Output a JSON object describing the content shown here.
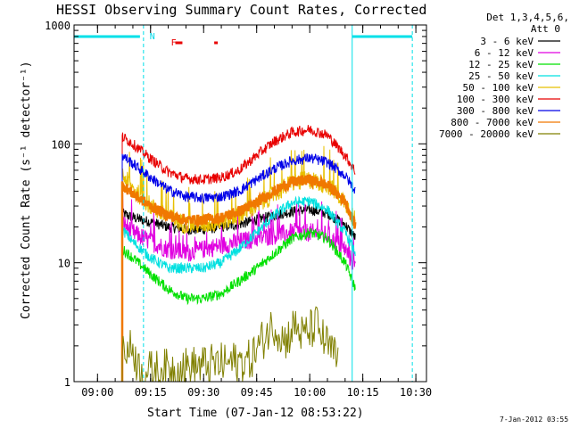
{
  "chart_data": {
    "type": "line",
    "title": "HESSI Observing Summary Count Rates, Corrected",
    "xlabel": "Start Time (07-Jan-12 08:53:22)",
    "ylabel": "Corrected Count Rate (s⁻¹ detector⁻¹)",
    "yscale": "log",
    "ylim": [
      1,
      1000
    ],
    "xlim": [
      "08:53:22",
      "10:33:00"
    ],
    "yticks": [
      "1",
      "10",
      "100",
      "1000"
    ],
    "xticks": [
      "09:00",
      "09:15",
      "09:30",
      "09:45",
      "10:00",
      "10:15",
      "10:30"
    ],
    "grid": false,
    "legend_position": "right-outside",
    "legend_header": [
      "Det 1,3,4,5,6,",
      "Att 0"
    ],
    "timestamp": "7-Jan-2012 03:55",
    "annotations": [
      {
        "text": "N",
        "x": "09:14",
        "color": "#00d8e8"
      },
      {
        "text": "F",
        "x": "09:20",
        "color": "#e80000"
      }
    ],
    "orbit_bars": {
      "color": "#00e0e8",
      "night_start": "09:13",
      "day_boundaries": [
        "09:13",
        "10:12",
        "10:29"
      ],
      "bars": [
        {
          "x0": "08:53:22",
          "x1": "09:12"
        },
        {
          "x0": "10:12",
          "x1": "10:29"
        }
      ]
    },
    "flare_flags": {
      "color": "#e80000",
      "segments": [
        {
          "x0": "09:22",
          "x1": "09:24"
        },
        {
          "x0": "09:33",
          "x1": "09:34"
        }
      ]
    },
    "series": [
      {
        "name": "3 - 6 keV",
        "color": "#000000",
        "x": [
          "09:07",
          "09:10",
          "09:15",
          "09:20",
          "09:25",
          "09:30",
          "09:35",
          "09:40",
          "09:45",
          "09:50",
          "09:55",
          "10:00",
          "10:05",
          "10:10",
          "10:13"
        ],
        "y": [
          26,
          24,
          22,
          20,
          19,
          19,
          20,
          21,
          23,
          25,
          27,
          28,
          26,
          21,
          16
        ]
      },
      {
        "name": "6 - 12 keV",
        "color": "#e000e0",
        "x": [
          "09:07",
          "09:10",
          "09:15",
          "09:20",
          "09:25",
          "09:30",
          "09:35",
          "09:40",
          "09:45",
          "09:50",
          "09:55",
          "10:00",
          "10:05",
          "10:10",
          "10:13"
        ],
        "y": [
          22,
          18,
          15,
          13,
          12,
          13,
          14,
          15,
          16,
          17,
          18,
          18,
          17,
          13,
          9
        ]
      },
      {
        "name": "12 - 25 keV",
        "color": "#00e000",
        "x": [
          "09:07",
          "09:10",
          "09:15",
          "09:20",
          "09:25",
          "09:30",
          "09:35",
          "09:40",
          "09:45",
          "09:50",
          "09:55",
          "10:00",
          "10:05",
          "10:10",
          "10:13"
        ],
        "y": [
          13,
          11,
          8,
          6,
          5,
          5,
          5.5,
          7,
          9,
          12,
          16,
          18,
          16,
          10,
          6
        ]
      },
      {
        "name": "25 - 50 keV",
        "color": "#00e0e0",
        "x": [
          "09:07",
          "09:10",
          "09:15",
          "09:20",
          "09:25",
          "09:30",
          "09:35",
          "09:40",
          "09:45",
          "09:50",
          "09:55",
          "10:00",
          "10:05",
          "10:10",
          "10:13"
        ],
        "y": [
          19,
          15,
          11,
          9,
          9,
          9,
          10,
          13,
          18,
          25,
          32,
          33,
          28,
          18,
          12
        ]
      },
      {
        "name": "50 - 100 keV",
        "color": "#e8c000",
        "x": [
          "09:07",
          "09:10",
          "09:15",
          "09:20",
          "09:25",
          "09:30",
          "09:35",
          "09:40",
          "09:45",
          "09:50",
          "09:55",
          "10:00",
          "10:05",
          "10:10",
          "10:13"
        ],
        "y": [
          55,
          42,
          30,
          24,
          21,
          21,
          22,
          25,
          30,
          38,
          47,
          50,
          45,
          33,
          22
        ]
      },
      {
        "name": "100 - 300 keV",
        "color": "#e80000",
        "x": [
          "09:07",
          "09:10",
          "09:15",
          "09:20",
          "09:25",
          "09:30",
          "09:35",
          "09:40",
          "09:45",
          "09:50",
          "09:55",
          "10:00",
          "10:05",
          "10:10",
          "10:13"
        ],
        "y": [
          115,
          100,
          75,
          58,
          51,
          50,
          52,
          60,
          80,
          105,
          125,
          132,
          118,
          80,
          58
        ]
      },
      {
        "name": "300 - 800 keV",
        "color": "#0000e8",
        "x": [
          "09:07",
          "09:10",
          "09:15",
          "09:20",
          "09:25",
          "09:30",
          "09:35",
          "09:40",
          "09:45",
          "09:50",
          "09:55",
          "10:00",
          "10:05",
          "10:10",
          "10:13"
        ],
        "y": [
          80,
          68,
          52,
          41,
          36,
          35,
          36,
          40,
          50,
          62,
          72,
          76,
          70,
          54,
          40
        ]
      },
      {
        "name": "800 - 7000 keV",
        "color": "#f07800",
        "x": [
          "09:07",
          "09:10",
          "09:15",
          "09:20",
          "09:25",
          "09:30",
          "09:35",
          "09:40",
          "09:45",
          "09:50",
          "09:55",
          "10:00",
          "10:05",
          "10:10",
          "10:13"
        ],
        "y": [
          45,
          38,
          30,
          25,
          23,
          23,
          24,
          27,
          32,
          40,
          48,
          50,
          45,
          33,
          20
        ]
      },
      {
        "name": "7000 - 20000 keV",
        "color": "#808000",
        "x": [
          "09:07",
          "09:09",
          "09:10",
          "09:11",
          "09:12",
          "09:43",
          "09:48",
          "09:50",
          "09:53",
          "09:56",
          "09:58",
          "10:02",
          "10:04",
          "10:08"
        ],
        "y": [
          2,
          1.8,
          2,
          1.5,
          1.2,
          1.5,
          2.6,
          3,
          2.2,
          3,
          2.4,
          3,
          2.2,
          1.5
        ]
      }
    ]
  }
}
